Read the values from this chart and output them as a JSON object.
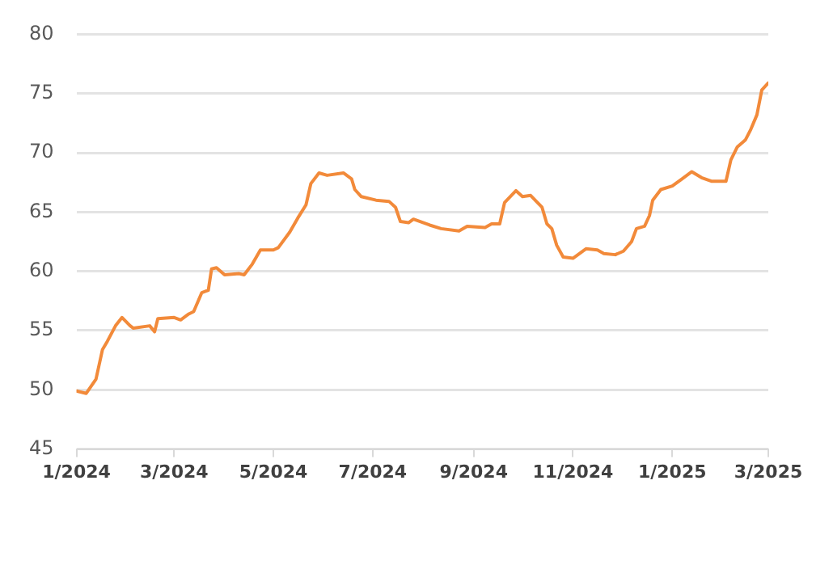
{
  "chart_data": {
    "type": "line",
    "x": [
      "2024-01-01",
      "2024-01-07",
      "2024-01-13",
      "2024-01-17",
      "2024-01-20",
      "2024-01-25",
      "2024-01-29",
      "2024-02-03",
      "2024-02-05",
      "2024-02-15",
      "2024-02-18",
      "2024-02-20",
      "2024-03-01",
      "2024-03-05",
      "2024-03-10",
      "2024-03-13",
      "2024-03-18",
      "2024-03-22",
      "2024-03-24",
      "2024-03-27",
      "2024-04-01",
      "2024-04-10",
      "2024-04-13",
      "2024-04-18",
      "2024-04-23",
      "2024-05-01",
      "2024-05-04",
      "2024-05-11",
      "2024-05-16",
      "2024-05-21",
      "2024-05-24",
      "2024-05-29",
      "2024-06-03",
      "2024-06-13",
      "2024-06-18",
      "2024-06-20",
      "2024-06-24",
      "2024-07-03",
      "2024-07-11",
      "2024-07-15",
      "2024-07-18",
      "2024-07-23",
      "2024-07-26",
      "2024-08-05",
      "2024-08-12",
      "2024-08-23",
      "2024-08-28",
      "2024-09-08",
      "2024-09-12",
      "2024-09-17",
      "2024-09-20",
      "2024-09-27",
      "2024-10-01",
      "2024-10-06",
      "2024-10-13",
      "2024-10-16",
      "2024-10-19",
      "2024-10-22",
      "2024-10-26",
      "2024-11-01",
      "2024-11-09",
      "2024-11-16",
      "2024-11-20",
      "2024-11-27",
      "2024-12-02",
      "2024-12-07",
      "2024-12-10",
      "2024-12-15",
      "2024-12-18",
      "2024-12-20",
      "2024-12-25",
      "2025-01-01",
      "2025-01-07",
      "2025-01-13",
      "2025-01-19",
      "2025-01-25",
      "2025-02-03",
      "2025-02-06",
      "2025-02-10",
      "2025-02-15",
      "2025-02-18",
      "2025-02-22",
      "2025-02-25",
      "2025-03-01"
    ],
    "series": [
      {
        "color": "#f28a3a",
        "values": [
          49.9,
          49.7,
          50.9,
          53.4,
          54.1,
          55.4,
          56.1,
          55.4,
          55.2,
          55.4,
          54.9,
          56.0,
          56.1,
          55.9,
          56.4,
          56.6,
          58.2,
          58.4,
          60.2,
          60.3,
          59.7,
          59.8,
          59.7,
          60.6,
          61.8,
          61.8,
          62.0,
          63.3,
          64.5,
          65.6,
          67.4,
          68.3,
          68.1,
          68.3,
          67.8,
          66.9,
          66.3,
          66.0,
          65.9,
          65.4,
          64.2,
          64.1,
          64.4,
          63.9,
          63.6,
          63.4,
          63.8,
          63.7,
          64.0,
          64.0,
          65.8,
          66.8,
          66.3,
          66.4,
          65.4,
          64.0,
          63.6,
          62.2,
          61.2,
          61.1,
          61.9,
          61.8,
          61.5,
          61.4,
          61.7,
          62.5,
          63.6,
          63.8,
          64.7,
          66.0,
          66.9,
          67.2,
          67.8,
          68.4,
          67.9,
          67.6,
          67.6,
          69.4,
          70.5,
          71.1,
          71.9,
          73.2,
          75.3,
          75.9
        ]
      }
    ],
    "xlim": [
      "2024-01-01",
      "2025-03-01"
    ],
    "xticks": [
      {
        "value": "2024-01-01",
        "label": "1/2024"
      },
      {
        "value": "2024-03-01",
        "label": "3/2024"
      },
      {
        "value": "2024-05-01",
        "label": "5/2024"
      },
      {
        "value": "2024-07-01",
        "label": "7/2024"
      },
      {
        "value": "2024-09-01",
        "label": "9/2024"
      },
      {
        "value": "2024-11-01",
        "label": "11/2024"
      },
      {
        "value": "2025-01-01",
        "label": "1/2025"
      },
      {
        "value": "2025-03-01",
        "label": "3/2025"
      }
    ],
    "ylim": [
      45,
      80
    ],
    "yticks": [
      45,
      50,
      55,
      60,
      65,
      70,
      75,
      80
    ],
    "grid": "y",
    "marker": "none",
    "line_style": "solid"
  }
}
